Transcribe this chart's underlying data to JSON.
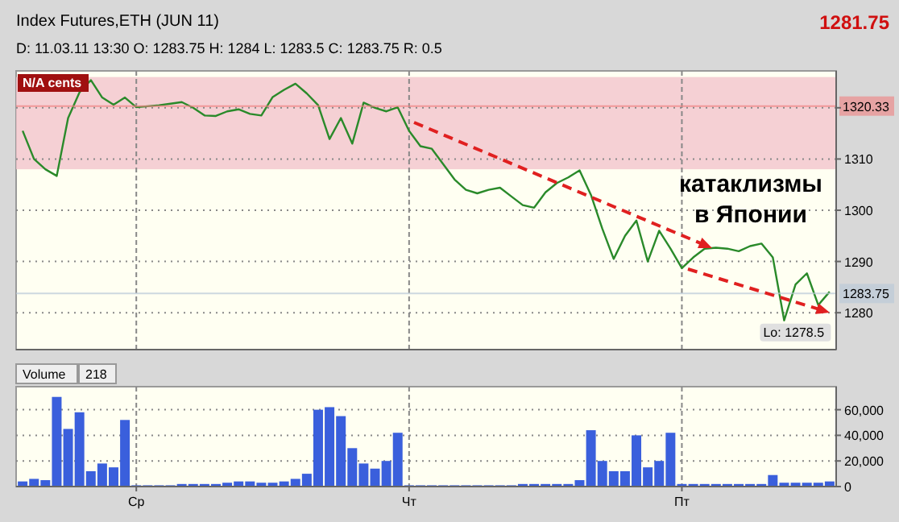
{
  "chart_data": [
    {
      "type": "line",
      "title": "Index Futures,ETH (JUN 11)",
      "subtitle": "D: 11.03.11 13:30   O: 1283.75   H: 1284   L: 1283.5   C: 1283.75   R: 0.5",
      "annotations": [
        "N/A cents",
        "1281.75",
        "Lo: 1278.5",
        "катаклизмы\nв Японии"
      ],
      "categories": [
        null,
        null,
        null,
        null,
        null,
        null,
        null,
        null,
        null,
        null,
        null,
        null,
        null,
        null,
        null,
        null,
        null,
        null,
        null,
        null,
        null,
        null,
        null,
        null,
        null,
        null,
        null,
        null,
        null,
        null,
        null,
        null,
        null,
        null,
        null,
        null,
        null,
        null,
        null,
        null,
        null,
        null,
        null,
        null,
        null,
        null,
        null,
        null,
        null,
        null,
        null,
        null,
        null,
        null,
        null,
        null,
        null,
        null,
        null,
        null,
        null,
        null,
        null,
        null,
        null,
        null,
        null,
        null,
        null,
        null,
        null,
        null
      ],
      "series": [
        {
          "color": "#2a8a2a",
          "values": [
            1315.5,
            1310,
            1308,
            1306.7,
            1318,
            1323,
            1325.4,
            1322,
            1320.6,
            1322,
            1320.1,
            1320.3,
            1320.5,
            1320.8,
            1321.1,
            1320,
            1318.5,
            1318.4,
            1319.3,
            1319.7,
            1318.8,
            1318.5,
            1322.1,
            1323.5,
            1324.7,
            1322.8,
            1320.5,
            1313.9,
            1318,
            1313,
            1321,
            1320,
            1319.3,
            1320.1,
            1315.5,
            1312.5,
            1312,
            1309,
            1306,
            1304,
            1303.3,
            1304,
            1304.4,
            1302.7,
            1301,
            1300.5,
            1303.5,
            1305.3,
            1306.4,
            1307.8,
            1303,
            1296.4,
            1290.5,
            1295,
            1298,
            1290,
            1296,
            1292.5,
            1288.7,
            1290.8,
            1292.5,
            1292.7,
            1292.5,
            1292,
            1293,
            1293.5,
            1290.8,
            1278.5,
            1285.5,
            1287.7,
            1281.5,
            1284.1
          ]
        }
      ],
      "ylim": [
        1272.8,
        1327.2
      ],
      "yticks": [
        1280,
        1290,
        1300,
        1310,
        {
          "value": 1320,
          "label": null
        }
      ],
      "bands": [
        {
          "axis": "y",
          "from": 1308,
          "to": 1326,
          "color": "#f2c4cc"
        }
      ],
      "ref_lines": [
        {
          "axis": "y",
          "value": 1320.33,
          "label": "1320.33",
          "color": "#f08080"
        },
        {
          "axis": "y",
          "value": 1283.75,
          "label": "1283.75",
          "color": "#b8c8d8"
        }
      ],
      "grid": true,
      "tick_labels": "y"
    },
    {
      "type": "bar",
      "annotations": [
        "Volume",
        "218"
      ],
      "categories": [
        null,
        null,
        null,
        null,
        null,
        null,
        null,
        null,
        null,
        null,
        "Ср",
        null,
        null,
        null,
        null,
        null,
        null,
        null,
        null,
        null,
        null,
        null,
        null,
        null,
        null,
        null,
        null,
        null,
        null,
        null,
        null,
        null,
        null,
        null,
        "Чт",
        null,
        null,
        null,
        null,
        null,
        null,
        null,
        null,
        null,
        null,
        null,
        null,
        null,
        null,
        null,
        null,
        null,
        null,
        null,
        null,
        null,
        null,
        null,
        "Пт",
        null,
        null,
        null,
        null,
        null,
        null,
        null,
        null,
        null,
        null,
        null,
        null,
        null
      ],
      "series": [
        {
          "color": "#3a5fdc",
          "values": [
            4000,
            6000,
            5000,
            70000,
            45000,
            58000,
            12000,
            18000,
            15000,
            52000,
            1000,
            1000,
            1000,
            1000,
            2000,
            2000,
            2000,
            2000,
            3000,
            4000,
            4000,
            3000,
            3000,
            4000,
            6000,
            10000,
            60000,
            62000,
            55000,
            30000,
            18000,
            14000,
            20000,
            42000,
            1000,
            1000,
            1000,
            1000,
            1000,
            1000,
            1000,
            1000,
            1000,
            1000,
            2000,
            2000,
            2000,
            2000,
            2000,
            5000,
            44000,
            20000,
            12000,
            12000,
            40000,
            15000,
            20000,
            42000,
            2000,
            2000,
            2000,
            2000,
            2000,
            2000,
            2000,
            2000,
            9000,
            3000,
            3000,
            3000,
            3000,
            4000
          ]
        }
      ],
      "ylim": [
        0,
        78000
      ],
      "yticks": [
        0,
        {
          "value": 20000,
          "label": "20,000"
        },
        {
          "value": 40000,
          "label": "40,000"
        },
        {
          "value": 60000,
          "label": "60,000"
        }
      ],
      "grid": true
    }
  ]
}
